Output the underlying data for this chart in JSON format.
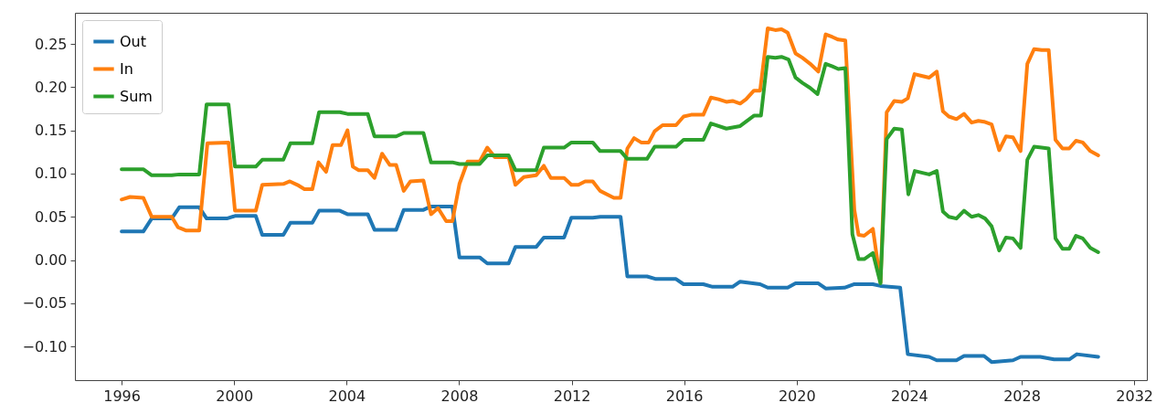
{
  "chart_data": {
    "type": "line",
    "xlim": [
      1994.34,
      2032.45
    ],
    "xticks": [
      1996,
      2000,
      2004,
      2008,
      2012,
      2016,
      2020,
      2024,
      2028,
      2032
    ],
    "ylim": [
      -0.139,
      0.286
    ],
    "yticks": [
      {
        "value": -0.1,
        "label": "−0.10"
      },
      {
        "value": -0.05,
        "label": "−0.05"
      },
      {
        "value": 0,
        "label": "0.00"
      },
      0.05,
      {
        "value": 0.1,
        "label": "0.10"
      },
      0.15,
      {
        "value": 0.2,
        "label": "0.20"
      },
      0.25
    ],
    "grid": false,
    "legend": "top left",
    "line_style": "solid",
    "marker": "none",
    "series": [
      {
        "name": "Out",
        "color": "#1f77b4",
        "x": [
          1996,
          1996.77,
          1997.07,
          1997.78,
          1998.05,
          1998.76,
          1999.02,
          1999.74,
          2000.03,
          2000.77,
          2001,
          2001.75,
          2002,
          2002.78,
          2003.02,
          2003.76,
          2004.03,
          2004.75,
          2004.99,
          2005.76,
          2006.03,
          2006.73,
          2007,
          2007.76,
          2008.01,
          2008.73,
          2009,
          2009.76,
          2010,
          2010.74,
          2011.01,
          2011.73,
          2011.99,
          2012.75,
          2013.02,
          2013.74,
          2013.98,
          2014.68,
          2015,
          2015.71,
          2015.98,
          2016.68,
          2017.01,
          2017.72,
          2017.99,
          2018.7,
          2018.97,
          2019.68,
          2019.96,
          2020.77,
          2021.03,
          2021.7,
          2022.03,
          2022.71,
          2022.98,
          2023.68,
          2023.95,
          2024.71,
          2024.98,
          2025.68,
          2025.95,
          2026.66,
          2026.93,
          2027.69,
          2027.96,
          2028.66,
          2029.15,
          2029.69,
          2029.96,
          2030.72
        ],
        "values": [
          0.033,
          0.033,
          0.048,
          0.048,
          0.061,
          0.061,
          0.048,
          0.048,
          0.051,
          0.051,
          0.029,
          0.029,
          0.043,
          0.043,
          0.057,
          0.057,
          0.053,
          0.053,
          0.035,
          0.035,
          0.058,
          0.058,
          0.062,
          0.062,
          0.003,
          0.003,
          -0.004,
          -0.004,
          0.015,
          0.015,
          0.026,
          0.026,
          0.049,
          0.049,
          0.05,
          0.05,
          -0.019,
          -0.019,
          -0.022,
          -0.022,
          -0.028,
          -0.028,
          -0.031,
          -0.031,
          -0.025,
          -0.028,
          -0.032,
          -0.032,
          -0.027,
          -0.027,
          -0.033,
          -0.032,
          -0.028,
          -0.028,
          -0.03,
          -0.032,
          -0.109,
          -0.112,
          -0.116,
          -0.116,
          -0.111,
          -0.111,
          -0.118,
          -0.116,
          -0.112,
          -0.112,
          -0.115,
          -0.115,
          -0.109,
          -0.112
        ]
      },
      {
        "name": "In",
        "color": "#ff7f0e",
        "x": [
          1996,
          1996.3,
          1996.77,
          1997.07,
          1997.78,
          1998,
          1998.3,
          1998.76,
          1999.05,
          1999.8,
          2000.03,
          2000.77,
          2001,
          2001.75,
          2001.98,
          2002.3,
          2002.5,
          2002.78,
          2003,
          2003.27,
          2003.5,
          2003.8,
          2004.03,
          2004.22,
          2004.43,
          2004.75,
          2004.99,
          2005.26,
          2005.53,
          2005.76,
          2006.03,
          2006.27,
          2006.73,
          2007,
          2007.25,
          2007.54,
          2007.76,
          2008.01,
          2008.3,
          2008.73,
          2009,
          2009.27,
          2009.76,
          2010,
          2010.3,
          2010.74,
          2011.01,
          2011.26,
          2011.73,
          2011.99,
          2012.24,
          2012.48,
          2012.75,
          2013.01,
          2013.5,
          2013.74,
          2013.98,
          2014.22,
          2014.47,
          2014.74,
          2014.95,
          2015.23,
          2015.71,
          2015.98,
          2016.25,
          2016.68,
          2016.95,
          2017.22,
          2017.5,
          2017.72,
          2017.99,
          2018.2,
          2018.48,
          2018.7,
          2018.97,
          2019.24,
          2019.46,
          2019.68,
          2019.96,
          2020.2,
          2020.48,
          2020.77,
          2021.03,
          2021.27,
          2021.48,
          2021.73,
          2022.05,
          2022.2,
          2022.4,
          2022.71,
          2022.98,
          2023.2,
          2023.47,
          2023.74,
          2023.95,
          2024.19,
          2024.44,
          2024.71,
          2024.98,
          2025.2,
          2025.41,
          2025.68,
          2025.95,
          2026.22,
          2026.46,
          2026.66,
          2026.93,
          2027.2,
          2027.44,
          2027.69,
          2027.96,
          2028.2,
          2028.44,
          2028.71,
          2028.96,
          2029.2,
          2029.45,
          2029.69,
          2029.93,
          2030.17,
          2030.44,
          2030.72
        ],
        "values": [
          0.07,
          0.073,
          0.072,
          0.05,
          0.05,
          0.038,
          0.034,
          0.034,
          0.135,
          0.136,
          0.057,
          0.057,
          0.087,
          0.088,
          0.091,
          0.086,
          0.082,
          0.082,
          0.113,
          0.102,
          0.133,
          0.133,
          0.15,
          0.108,
          0.104,
          0.104,
          0.095,
          0.123,
          0.11,
          0.11,
          0.08,
          0.091,
          0.092,
          0.053,
          0.06,
          0.045,
          0.045,
          0.088,
          0.114,
          0.114,
          0.13,
          0.119,
          0.119,
          0.087,
          0.096,
          0.098,
          0.109,
          0.095,
          0.095,
          0.087,
          0.087,
          0.091,
          0.091,
          0.08,
          0.072,
          0.072,
          0.129,
          0.141,
          0.136,
          0.136,
          0.149,
          0.156,
          0.156,
          0.166,
          0.168,
          0.168,
          0.188,
          0.186,
          0.183,
          0.184,
          0.181,
          0.186,
          0.196,
          0.196,
          0.268,
          0.266,
          0.267,
          0.263,
          0.239,
          0.234,
          0.227,
          0.218,
          0.261,
          0.258,
          0.255,
          0.254,
          0.058,
          0.029,
          0.028,
          0.036,
          -0.026,
          0.171,
          0.184,
          0.183,
          0.187,
          0.215,
          0.213,
          0.211,
          0.218,
          0.172,
          0.166,
          0.163,
          0.169,
          0.159,
          0.161,
          0.16,
          0.157,
          0.127,
          0.143,
          0.142,
          0.126,
          0.227,
          0.244,
          0.243,
          0.243,
          0.139,
          0.129,
          0.129,
          0.138,
          0.136,
          0.126,
          0.121
        ]
      },
      {
        "name": "Sum",
        "color": "#2ca02c",
        "x": [
          1996,
          1996.77,
          1997.07,
          1997.78,
          1998.05,
          1998.76,
          1999.02,
          1999.8,
          2000.03,
          2000.77,
          2001,
          2001.75,
          2002,
          2002.78,
          2003.02,
          2003.76,
          2004.03,
          2004.75,
          2004.99,
          2005.76,
          2006.03,
          2006.73,
          2007,
          2007.76,
          2008.01,
          2008.73,
          2009,
          2009.76,
          2010,
          2010.74,
          2011.01,
          2011.73,
          2011.99,
          2012.75,
          2013.01,
          2013.74,
          2013.98,
          2014.68,
          2014.95,
          2015.71,
          2015.98,
          2016.68,
          2016.95,
          2017.5,
          2017.99,
          2018.48,
          2018.73,
          2018.97,
          2019.24,
          2019.46,
          2019.71,
          2019.96,
          2020.2,
          2020.48,
          2020.74,
          2021.03,
          2021.27,
          2021.48,
          2021.73,
          2021.98,
          2022.2,
          2022.4,
          2022.71,
          2022.98,
          2023.2,
          2023.47,
          2023.74,
          2023.97,
          2024.2,
          2024.71,
          2024.98,
          2025.2,
          2025.41,
          2025.68,
          2025.95,
          2026.22,
          2026.46,
          2026.7,
          2026.93,
          2027.2,
          2027.44,
          2027.69,
          2027.96,
          2028.2,
          2028.44,
          2028.71,
          2028.96,
          2029.2,
          2029.45,
          2029.69,
          2029.93,
          2030.17,
          2030.44,
          2030.72
        ],
        "values": [
          0.105,
          0.105,
          0.098,
          0.098,
          0.099,
          0.099,
          0.18,
          0.18,
          0.108,
          0.108,
          0.116,
          0.116,
          0.135,
          0.135,
          0.171,
          0.171,
          0.169,
          0.169,
          0.143,
          0.143,
          0.147,
          0.147,
          0.113,
          0.113,
          0.111,
          0.111,
          0.121,
          0.121,
          0.104,
          0.104,
          0.13,
          0.13,
          0.136,
          0.136,
          0.126,
          0.126,
          0.117,
          0.117,
          0.131,
          0.131,
          0.139,
          0.139,
          0.158,
          0.152,
          0.155,
          0.167,
          0.167,
          0.235,
          0.234,
          0.235,
          0.232,
          0.211,
          0.205,
          0.199,
          0.192,
          0.227,
          0.224,
          0.221,
          0.222,
          0.03,
          0.001,
          0.001,
          0.008,
          -0.027,
          0.14,
          0.152,
          0.151,
          0.076,
          0.103,
          0.099,
          0.103,
          0.056,
          0.05,
          0.048,
          0.057,
          0.05,
          0.052,
          0.048,
          0.039,
          0.011,
          0.026,
          0.025,
          0.014,
          0.116,
          0.131,
          0.13,
          0.129,
          0.025,
          0.013,
          0.013,
          0.028,
          0.025,
          0.014,
          0.009
        ]
      }
    ]
  }
}
